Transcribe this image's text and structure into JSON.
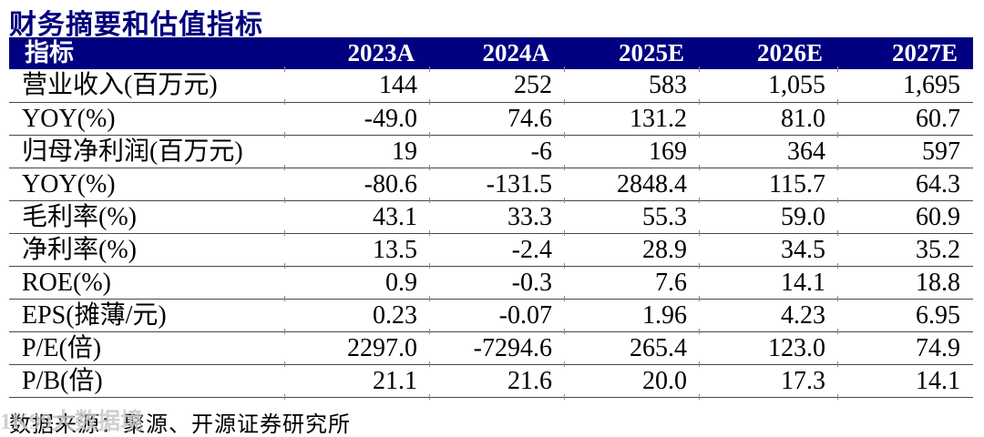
{
  "title": "财务摘要和估值指标",
  "table": {
    "header": [
      "指标",
      "2023A",
      "2024A",
      "2025E",
      "2026E",
      "2027E"
    ],
    "rows": [
      {
        "label": "营业收入(百万元)",
        "values": [
          "144",
          "252",
          "583",
          "1,055",
          "1,695"
        ]
      },
      {
        "label": "YOY(%)",
        "values": [
          "-49.0",
          "74.6",
          "131.2",
          "81.0",
          "60.7"
        ]
      },
      {
        "label": "归母净利润(百万元)",
        "values": [
          "19",
          "-6",
          "169",
          "364",
          "597"
        ]
      },
      {
        "label": "YOY(%)",
        "values": [
          "-80.6",
          "-131.5",
          "2848.4",
          "115.7",
          "64.3"
        ]
      },
      {
        "label": "毛利率(%)",
        "values": [
          "43.1",
          "33.3",
          "55.3",
          "59.0",
          "60.9"
        ]
      },
      {
        "label": "净利率(%)",
        "values": [
          "13.5",
          "-2.4",
          "28.9",
          "34.5",
          "35.2"
        ]
      },
      {
        "label": "ROE(%)",
        "values": [
          "0.9",
          "-0.3",
          "7.6",
          "14.1",
          "18.8"
        ]
      },
      {
        "label": "EPS(摊薄/元)",
        "values": [
          "0.23",
          "-0.07",
          "1.96",
          "4.23",
          "6.95"
        ]
      },
      {
        "label": "P/E(倍)",
        "values": [
          "2297.0",
          "-7294.6",
          "265.4",
          "123.0",
          "74.9"
        ]
      },
      {
        "label": "P/B(倍)",
        "values": [
          "21.1",
          "21.6",
          "20.0",
          "17.3",
          "14.1"
        ]
      }
    ]
  },
  "footer": {
    "source": "数据来源：聚源、开源证券研究所"
  },
  "watermark": "1K99大数据境",
  "colors": {
    "accent_navy": "#000080",
    "title_navy": "#00007d",
    "header_text": "#ffffff",
    "body_text": "#000000",
    "row_line": "#484848",
    "watermark_gray": "#c8c8c8"
  }
}
